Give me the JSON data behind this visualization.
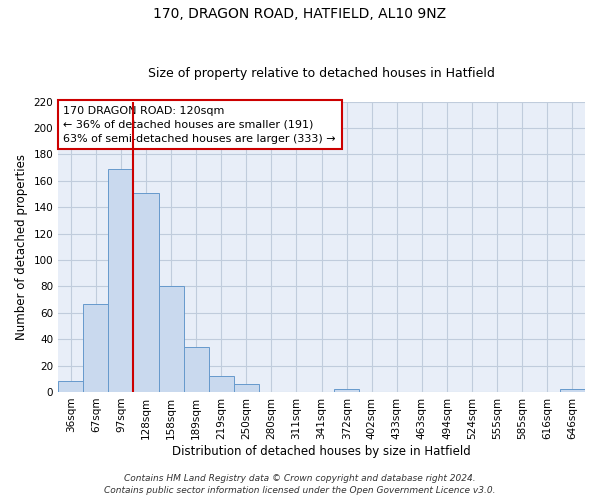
{
  "title": "170, DRAGON ROAD, HATFIELD, AL10 9NZ",
  "subtitle": "Size of property relative to detached houses in Hatfield",
  "xlabel": "Distribution of detached houses by size in Hatfield",
  "ylabel": "Number of detached properties",
  "bar_labels": [
    "36sqm",
    "67sqm",
    "97sqm",
    "128sqm",
    "158sqm",
    "189sqm",
    "219sqm",
    "250sqm",
    "280sqm",
    "311sqm",
    "341sqm",
    "372sqm",
    "402sqm",
    "433sqm",
    "463sqm",
    "494sqm",
    "524sqm",
    "555sqm",
    "585sqm",
    "616sqm",
    "646sqm"
  ],
  "bar_values": [
    8,
    67,
    169,
    151,
    80,
    34,
    12,
    6,
    0,
    0,
    0,
    2,
    0,
    0,
    0,
    0,
    0,
    0,
    0,
    0,
    2
  ],
  "bar_color": "#c9d9ee",
  "bar_edge_color": "#6699cc",
  "ylim": [
    0,
    220
  ],
  "yticks": [
    0,
    20,
    40,
    60,
    80,
    100,
    120,
    140,
    160,
    180,
    200,
    220
  ],
  "vline_x_index": 2.5,
  "vline_color": "#cc0000",
  "annotation_title": "170 DRAGON ROAD: 120sqm",
  "annotation_line1": "← 36% of detached houses are smaller (191)",
  "annotation_line2": "63% of semi-detached houses are larger (333) →",
  "annotation_box_color": "#cc0000",
  "footer_line1": "Contains HM Land Registry data © Crown copyright and database right 2024.",
  "footer_line2": "Contains public sector information licensed under the Open Government Licence v3.0.",
  "background_color": "#ffffff",
  "plot_bg_color": "#e8eef8",
  "grid_color": "#c0ccdc",
  "title_fontsize": 10,
  "subtitle_fontsize": 9,
  "axis_label_fontsize": 8.5,
  "tick_fontsize": 7.5,
  "annotation_fontsize": 8,
  "footer_fontsize": 6.5
}
